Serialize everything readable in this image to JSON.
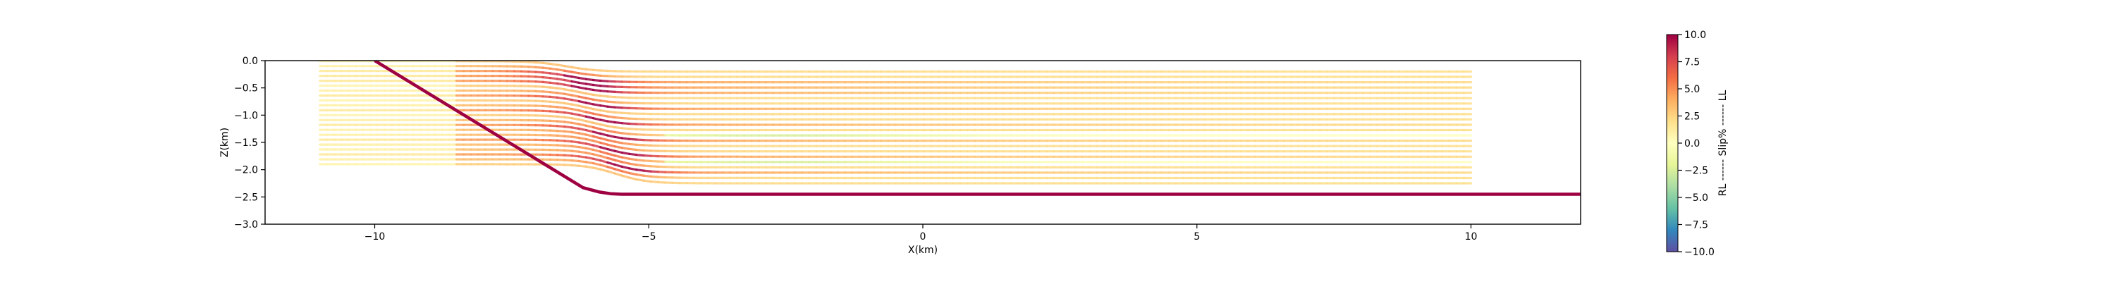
{
  "chart_data": {
    "type": "line",
    "title": "",
    "xlabel": "X(km)",
    "ylabel": "Z(km)",
    "xlim": [
      -12,
      12
    ],
    "ylim": [
      -3.0,
      0.0
    ],
    "xticks": [
      -10,
      -5,
      0,
      5,
      10
    ],
    "yticks": [
      0.0,
      -0.5,
      -1.0,
      -1.5,
      -2.0,
      -2.5,
      -3.0
    ],
    "fault": {
      "name": "fault",
      "color": "#9e0142",
      "x": [
        -10,
        -6.2,
        -5.9,
        -5.7,
        -5.5,
        12
      ],
      "z": [
        0.0,
        -2.33,
        -2.41,
        -2.44,
        -2.45,
        -2.45
      ]
    },
    "horizons": {
      "count": 22,
      "x_range": [
        -11,
        10
      ],
      "z_top": -0.2,
      "z_bottom": -2.25,
      "step_center_x": [
        -6.5,
        -5.6
      ],
      "step_drop": 0.35,
      "bright_levels": [
        0.4,
        0.55,
        0.85,
        1.15,
        1.45,
        1.75,
        2.05
      ],
      "slip_note": "slip % shown by colour along each horizon"
    },
    "colorbar": {
      "label": "RL ------ Slip% ------ LL",
      "min": -10.0,
      "max": 10.0,
      "ticks": [
        "10.0",
        "7.5",
        "5.0",
        "2.5",
        "0.0",
        "−2.5",
        "−5.0",
        "−7.5",
        "−10.0"
      ],
      "tick_values": [
        10.0,
        7.5,
        5.0,
        2.5,
        0.0,
        -2.5,
        -5.0,
        -7.5,
        -10.0
      ],
      "colormap": "Spectral",
      "stops": [
        "#5e4fa2",
        "#3288bd",
        "#66c2a5",
        "#abdda4",
        "#e6f598",
        "#ffffbf",
        "#fee08b",
        "#fdae61",
        "#f46d43",
        "#d53e4f",
        "#9e0142"
      ]
    },
    "tick_labels": {
      "x": [
        "−10",
        "−5",
        "0",
        "5",
        "10"
      ],
      "y": [
        "0.0",
        "−0.5",
        "−1.0",
        "−1.5",
        "−2.0",
        "−2.5",
        "−3.0"
      ]
    }
  }
}
